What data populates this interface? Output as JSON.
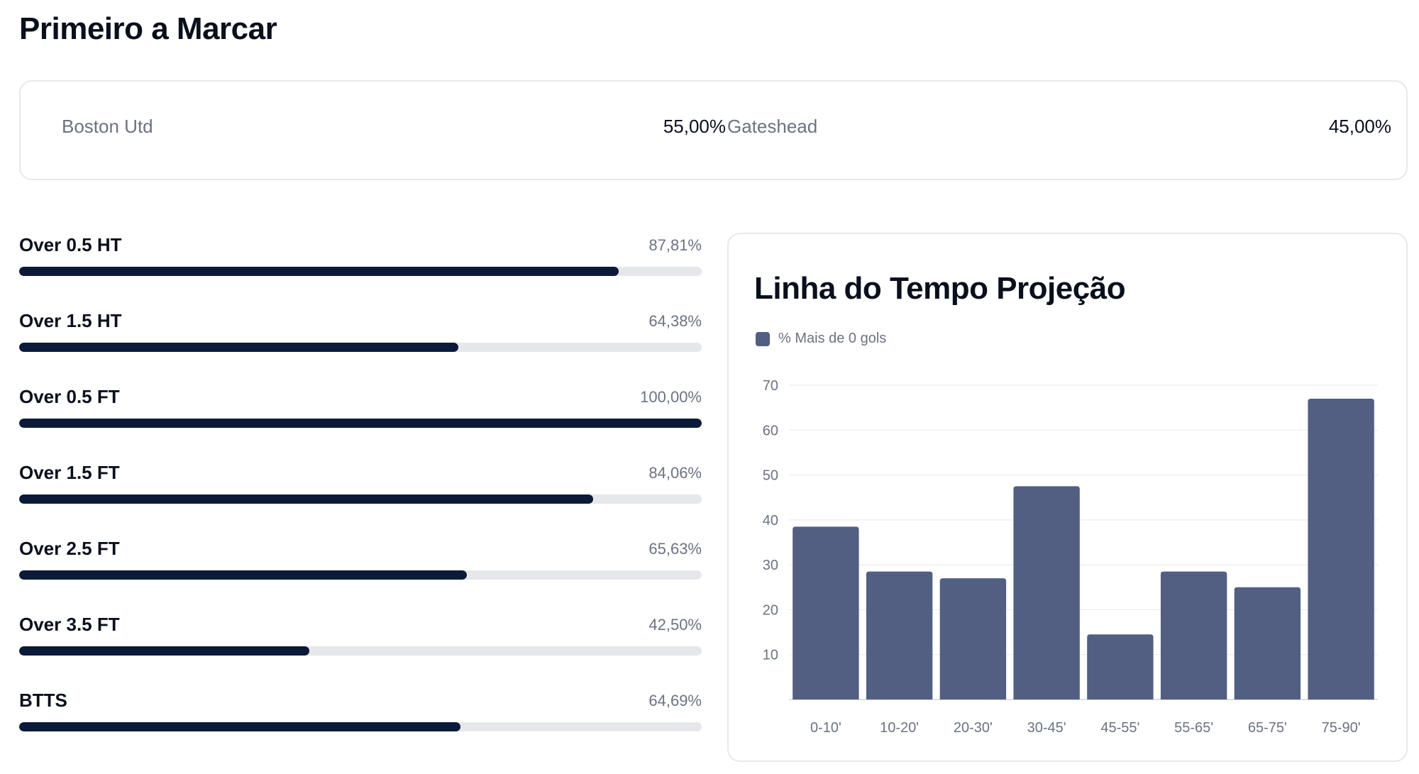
{
  "page_title": "Primeiro a Marcar",
  "first_scorer": [
    {
      "team": "Boston Utd",
      "value": "55,00%"
    },
    {
      "team": "Gateshead",
      "value": "45,00%"
    }
  ],
  "stats": [
    {
      "label": "Over 0.5 HT",
      "value_text": "87,81%",
      "fraction": 0.8781
    },
    {
      "label": "Over 1.5 HT",
      "value_text": "64,38%",
      "fraction": 0.6438
    },
    {
      "label": "Over 0.5 FT",
      "value_text": "100,00%",
      "fraction": 1.0
    },
    {
      "label": "Over 1.5 FT",
      "value_text": "84,06%",
      "fraction": 0.8406
    },
    {
      "label": "Over 2.5 FT",
      "value_text": "65,63%",
      "fraction": 0.6563
    },
    {
      "label": "Over 3.5 FT",
      "value_text": "42,50%",
      "fraction": 0.425
    },
    {
      "label": "BTTS",
      "value_text": "64,69%",
      "fraction": 0.6469
    }
  ],
  "colors": {
    "bar_fill": "#0b1a38",
    "bar_track": "#e5e7eb",
    "chart_bar": "#525e82"
  },
  "chart_data": {
    "type": "bar",
    "title": "Linha do Tempo Projeção",
    "categories": [
      "0-10'",
      "10-20'",
      "20-30'",
      "30-45'",
      "45-55'",
      "55-65'",
      "65-75'",
      "75-90'"
    ],
    "series": [
      {
        "name": "% Mais de 0 gols",
        "values": [
          38.5,
          28.5,
          27,
          47.5,
          14.5,
          28.5,
          25,
          67
        ]
      }
    ],
    "ylim": [
      0,
      70
    ],
    "yticks": [
      10,
      20,
      30,
      40,
      50,
      60,
      70
    ],
    "grid": true,
    "legend": "top-left"
  }
}
